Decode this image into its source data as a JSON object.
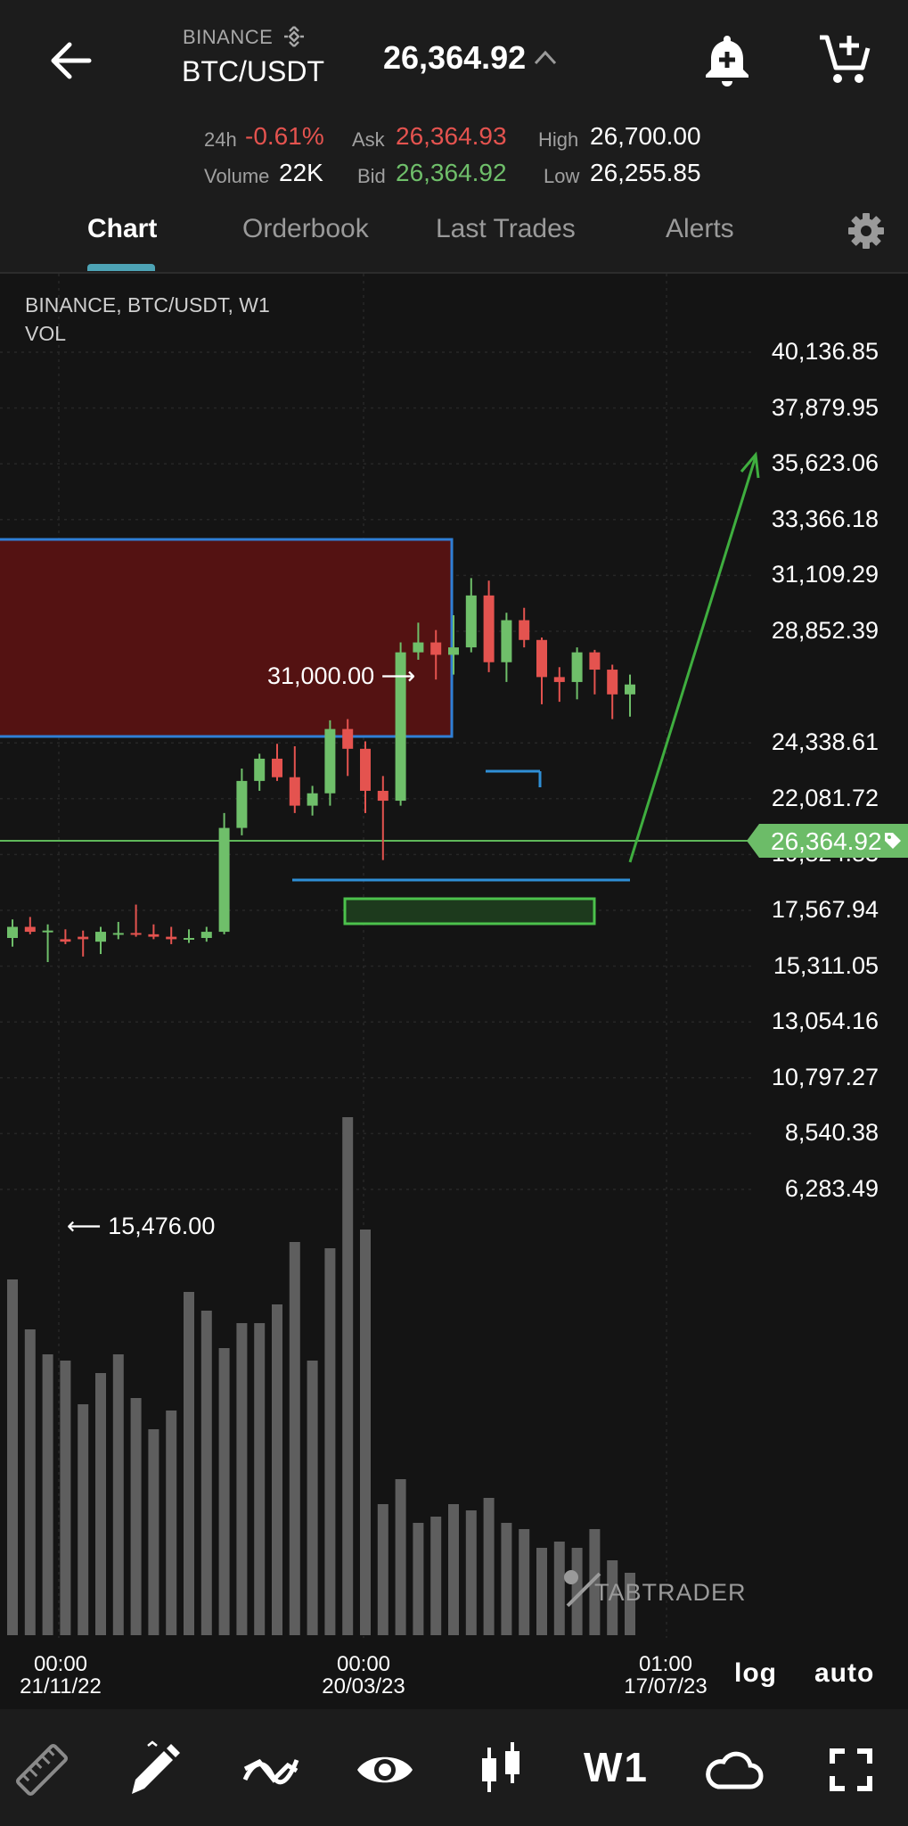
{
  "header": {
    "exchange": "BINANCE",
    "pair": "BTC/USDT",
    "price": "26,364.92",
    "stats": {
      "change_label": "24h",
      "change_value": "-0.61%",
      "ask_label": "Ask",
      "ask_value": "26,364.93",
      "high_label": "High",
      "high_value": "26,700.00",
      "volume_label": "Volume",
      "volume_value": "22K",
      "bid_label": "Bid",
      "bid_value": "26,364.92",
      "low_label": "Low",
      "low_value": "26,255.85"
    },
    "icons": [
      "arrow-left-icon",
      "binance-logo-icon",
      "caret-up-icon",
      "bell-plus-icon",
      "cart-plus-icon"
    ]
  },
  "tabs": [
    {
      "label": "Chart",
      "active": true
    },
    {
      "label": "Orderbook",
      "active": false
    },
    {
      "label": "Last Trades",
      "active": false
    },
    {
      "label": "Alerts",
      "active": false
    }
  ],
  "chart_info": {
    "line1": "BINANCE, BTC/USDT, W1",
    "line2": "VOL"
  },
  "watermark": "TABTRADER",
  "buttons": {
    "log": "log",
    "auto": "auto"
  },
  "colors": {
    "up": "#6fbf6a",
    "down": "#e4534f",
    "accent": "#4da3b5",
    "zone": "#5a1414",
    "zone_border": "#2f7fd6"
  },
  "chart_data": {
    "type": "candlestick",
    "title": "BINANCE, BTC/USDT, W1",
    "indicator": "VOL",
    "y_ticks": [
      "40,136.85",
      "37,879.95",
      "35,623.06",
      "33,366.18",
      "31,109.29",
      "28,852.39",
      "26,364.92",
      "24,338.61",
      "22,081.72",
      "19,824.83",
      "17,567.94",
      "15,311.05",
      "13,054.16",
      "10,797.27",
      "8,540.38",
      "6,283.49"
    ],
    "ylim": [
      5500,
      41500
    ],
    "current_price_label": "26,364.92",
    "x_ticks": [
      {
        "time": "00:00",
        "date": "21/11/22"
      },
      {
        "time": "00:00",
        "date": "20/03/23"
      },
      {
        "time": "01:00",
        "date": "17/07/23"
      }
    ],
    "annotations": {
      "high_label": "31,000.00",
      "low_label": "15,476.00"
    },
    "candles": [
      {
        "o": 16450,
        "h": 17200,
        "l": 16100,
        "c": 16900
      },
      {
        "o": 16900,
        "h": 17300,
        "l": 16600,
        "c": 16700
      },
      {
        "o": 16700,
        "h": 17000,
        "l": 15476,
        "c": 16750
      },
      {
        "o": 16400,
        "h": 16800,
        "l": 16200,
        "c": 16300
      },
      {
        "o": 16500,
        "h": 16750,
        "l": 15700,
        "c": 16400
      },
      {
        "o": 16300,
        "h": 16900,
        "l": 15800,
        "c": 16700
      },
      {
        "o": 16600,
        "h": 17100,
        "l": 16400,
        "c": 16650
      },
      {
        "o": 16650,
        "h": 17800,
        "l": 16500,
        "c": 16600
      },
      {
        "o": 16600,
        "h": 17000,
        "l": 16400,
        "c": 16500
      },
      {
        "o": 16500,
        "h": 16900,
        "l": 16200,
        "c": 16400
      },
      {
        "o": 16400,
        "h": 16800,
        "l": 16250,
        "c": 16450
      },
      {
        "o": 16450,
        "h": 16900,
        "l": 16300,
        "c": 16700
      },
      {
        "o": 16700,
        "h": 21500,
        "l": 16600,
        "c": 20900
      },
      {
        "o": 20900,
        "h": 23300,
        "l": 20600,
        "c": 22800
      },
      {
        "o": 22800,
        "h": 23900,
        "l": 22400,
        "c": 23700
      },
      {
        "o": 23700,
        "h": 24300,
        "l": 22800,
        "c": 22950
      },
      {
        "o": 22950,
        "h": 24200,
        "l": 21500,
        "c": 21800
      },
      {
        "o": 21800,
        "h": 22600,
        "l": 21400,
        "c": 22300
      },
      {
        "o": 22300,
        "h": 25250,
        "l": 21800,
        "c": 24900
      },
      {
        "o": 24900,
        "h": 25300,
        "l": 23000,
        "c": 24100
      },
      {
        "o": 24100,
        "h": 24400,
        "l": 21500,
        "c": 22400
      },
      {
        "o": 22400,
        "h": 23000,
        "l": 19600,
        "c": 22000
      },
      {
        "o": 22000,
        "h": 28400,
        "l": 21800,
        "c": 28000
      },
      {
        "o": 28000,
        "h": 29200,
        "l": 27700,
        "c": 28400
      },
      {
        "o": 28400,
        "h": 28900,
        "l": 26900,
        "c": 27900
      },
      {
        "o": 27900,
        "h": 29500,
        "l": 27100,
        "c": 28200
      },
      {
        "o": 28200,
        "h": 31000,
        "l": 28000,
        "c": 30300
      },
      {
        "o": 30300,
        "h": 30900,
        "l": 27200,
        "c": 27600
      },
      {
        "o": 27600,
        "h": 29600,
        "l": 26800,
        "c": 29300
      },
      {
        "o": 29300,
        "h": 29800,
        "l": 28200,
        "c": 28500
      },
      {
        "o": 28500,
        "h": 28600,
        "l": 25900,
        "c": 27000
      },
      {
        "o": 27000,
        "h": 27400,
        "l": 26000,
        "c": 26800
      },
      {
        "o": 26800,
        "h": 28200,
        "l": 26100,
        "c": 28000
      },
      {
        "o": 28000,
        "h": 28100,
        "l": 26300,
        "c": 27300
      },
      {
        "o": 27300,
        "h": 27500,
        "l": 25300,
        "c": 26300
      },
      {
        "o": 26300,
        "h": 27100,
        "l": 25400,
        "c": 26700
      }
    ],
    "volume_pct": [
      0.57,
      0.49,
      0.45,
      0.44,
      0.37,
      0.42,
      0.45,
      0.38,
      0.33,
      0.36,
      0.55,
      0.52,
      0.46,
      0.5,
      0.5,
      0.53,
      0.63,
      0.44,
      0.62,
      0.83,
      0.65,
      0.21,
      0.25,
      0.18,
      0.19,
      0.21,
      0.2,
      0.22,
      0.18,
      0.17,
      0.14,
      0.15,
      0.14,
      0.17,
      0.12,
      0.1
    ]
  }
}
